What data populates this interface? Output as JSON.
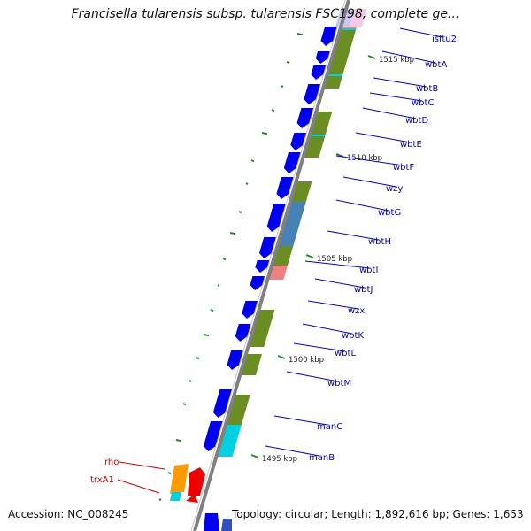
{
  "title": "Francisella tularensis subsp. tularensis FSC198, complete ge...",
  "footer": {
    "accession": "Accession: NC_008245",
    "topology": "Topology: circular; Length: 1,892,616 bp; Genes: 1,653"
  },
  "colors": {
    "backbone": "#808080",
    "cds_forward": "#0000ee",
    "cds_reverse": "#0000ee",
    "cyan_feature": "#00d0e0",
    "olive_feature": "#6b8e23",
    "steelblue_feature": "#4682b4",
    "pink_feature": "#f08080",
    "orange_feature": "#ff9900",
    "red_feature": "#ee0000",
    "gene_label_blue": "#0000cc",
    "gene_label_red": "#cc0000",
    "tick_green": "#228b22"
  },
  "kbp_marks": [
    "1515 kbp",
    "1510 kbp",
    "1505 kbp",
    "1500 kbp",
    "1495 kbp"
  ],
  "genes_right": [
    "isftu2",
    "wbtA",
    "wbtB",
    "wbtC",
    "wbtD",
    "wbtE",
    "wbtF",
    "wzy",
    "wbtG",
    "wbtH",
    "wbtI",
    "wbtJ",
    "wzx",
    "wbtK",
    "wbtL",
    "wbtM",
    "manC",
    "manB"
  ],
  "genes_left": [
    "rho",
    "trxA1"
  ]
}
